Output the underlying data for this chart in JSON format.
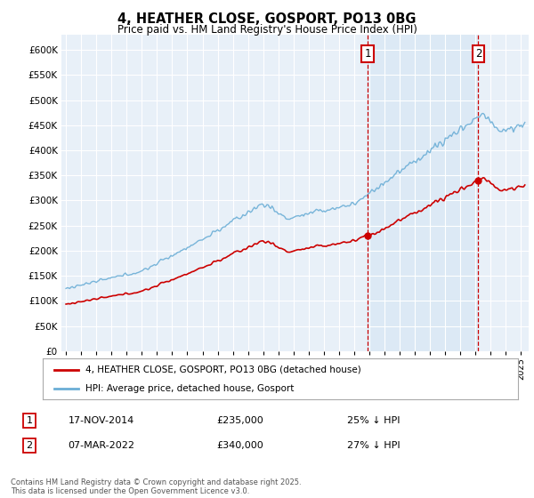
{
  "title": "4, HEATHER CLOSE, GOSPORT, PO13 0BG",
  "subtitle": "Price paid vs. HM Land Registry's House Price Index (HPI)",
  "legend_line1": "4, HEATHER CLOSE, GOSPORT, PO13 0BG (detached house)",
  "legend_line2": "HPI: Average price, detached house, Gosport",
  "footnote": "Contains HM Land Registry data © Crown copyright and database right 2025.\nThis data is licensed under the Open Government Licence v3.0.",
  "transaction1_date": "17-NOV-2014",
  "transaction1_price": "£235,000",
  "transaction1_hpi": "25% ↓ HPI",
  "transaction1_year": 2014.88,
  "transaction1_price_val": 235000,
  "transaction2_date": "07-MAR-2022",
  "transaction2_price": "£340,000",
  "transaction2_hpi": "27% ↓ HPI",
  "transaction2_year": 2022.18,
  "transaction2_price_val": 340000,
  "hpi_color": "#6baed6",
  "price_color": "#cc0000",
  "vline_color": "#cc0000",
  "shade_color": "#dce9f5",
  "background_color": "#e8f0f8",
  "grid_color": "#ffffff",
  "ylim": [
    0,
    630000
  ],
  "yticks": [
    0,
    50000,
    100000,
    150000,
    200000,
    250000,
    300000,
    350000,
    400000,
    450000,
    500000,
    550000,
    600000
  ],
  "xlim_start": 1994.7,
  "xlim_end": 2025.5
}
